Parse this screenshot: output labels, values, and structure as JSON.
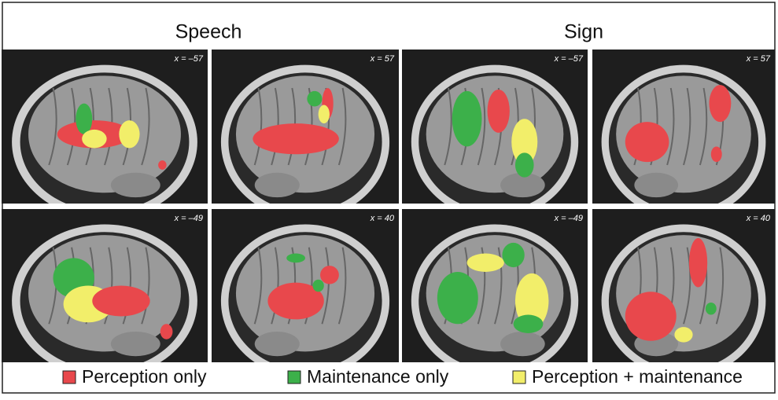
{
  "header": {
    "columns": [
      "Speech",
      "Sign"
    ]
  },
  "panels": [
    {
      "label": "x = –57"
    },
    {
      "label": "x = 57"
    },
    {
      "label": "x = –57"
    },
    {
      "label": "x = 57"
    },
    {
      "label": "x = –49"
    },
    {
      "label": "x = 40"
    },
    {
      "label": "x = –49"
    },
    {
      "label": "x = 40"
    }
  ],
  "legend": [
    {
      "label": "Perception only",
      "color": "#e8484c"
    },
    {
      "label": "Maintenance only",
      "color": "#3cb04a"
    },
    {
      "label": "Perception + maintenance",
      "color": "#f2ee6a"
    }
  ]
}
